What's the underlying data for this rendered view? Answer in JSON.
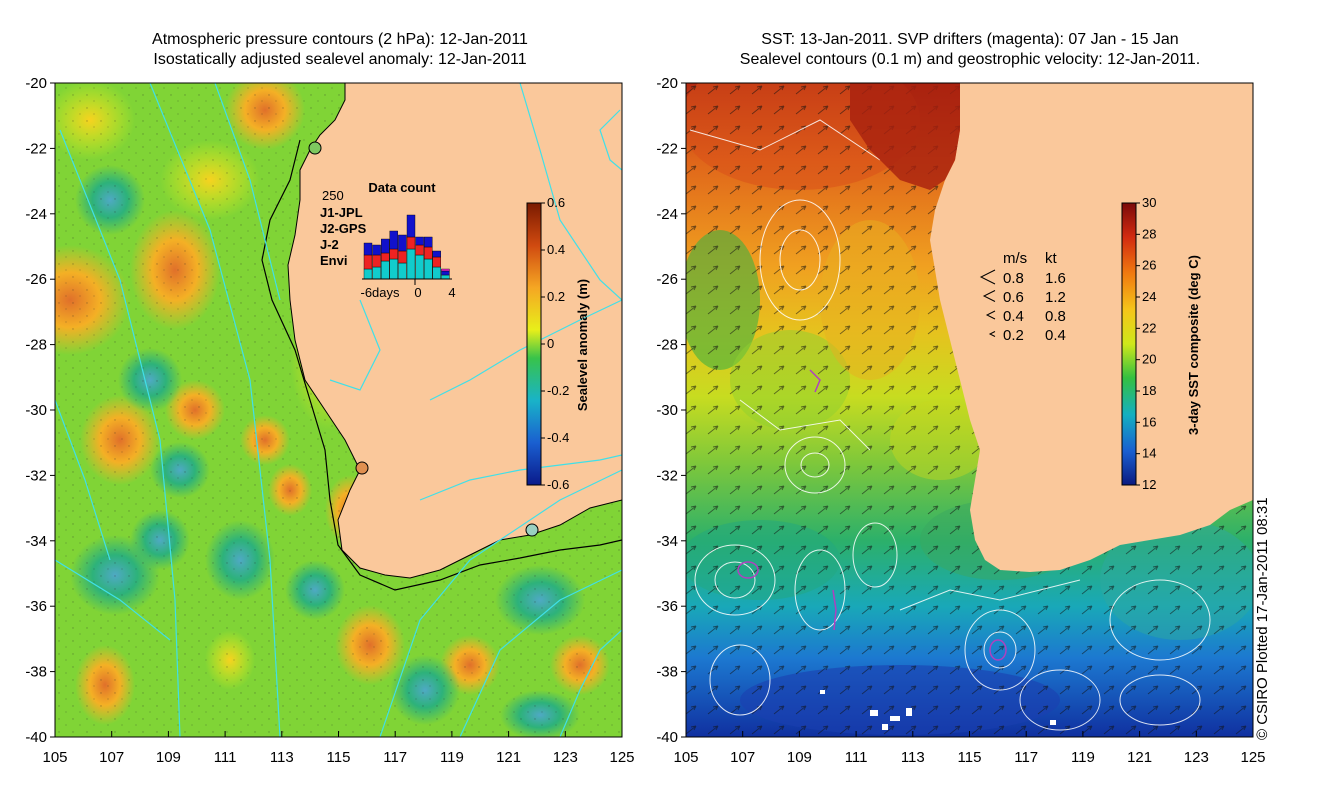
{
  "left_panel": {
    "title_line1": "Atmospheric pressure contours (2 hPa): 12-Jan-2011",
    "title_line2": "Isostatically adjusted sealevel anomaly: 12-Jan-2011",
    "colorbar": {
      "label": "Sealevel anomaly (m)",
      "ticks": [
        "0.6",
        "0.4",
        "0.2",
        "0",
        "-0.2",
        "-0.4",
        "-0.6"
      ]
    },
    "inset": {
      "title": "Data count",
      "max_label": "250",
      "xlabel_left": "-6days",
      "xlabel_mid": "0",
      "xlabel_right": "4",
      "missions": [
        {
          "name": "J1-JPL",
          "color": "#1111cc"
        },
        {
          "name": "J2-GPS",
          "color": "#ee22cc"
        },
        {
          "name": "J-2",
          "color": "#ee2222"
        },
        {
          "name": "Envi",
          "color": "#11cccc"
        }
      ]
    }
  },
  "right_panel": {
    "title_line1": "SST: 13-Jan-2011. SVP drifters (magenta): 07 Jan - 15 Jan",
    "title_line2": "Sealevel contours (0.1 m) and geostrophic velocity: 12-Jan-2011.",
    "colorbar": {
      "label": "3-day SST composite (deg C)",
      "ticks": [
        "30",
        "28",
        "26",
        "24",
        "22",
        "20",
        "18",
        "16",
        "14",
        "12"
      ]
    },
    "velocity_legend": {
      "header_ms": "m/s",
      "header_kt": "kt",
      "rows": [
        {
          "ms": "0.8",
          "kt": "1.6"
        },
        {
          "ms": "0.6",
          "kt": "1.2"
        },
        {
          "ms": "0.4",
          "kt": "0.8"
        },
        {
          "ms": "0.2",
          "kt": "0.4"
        }
      ]
    }
  },
  "axes": {
    "lat_ticks": [
      "-20",
      "-22",
      "-24",
      "-26",
      "-28",
      "-30",
      "-32",
      "-34",
      "-36",
      "-38",
      "-40"
    ],
    "lon_ticks": [
      "105",
      "107",
      "109",
      "111",
      "113",
      "115",
      "117",
      "119",
      "121",
      "123",
      "125"
    ]
  },
  "copyright": "© CSIRO Plotted 17-Jan-2011 08:31"
}
